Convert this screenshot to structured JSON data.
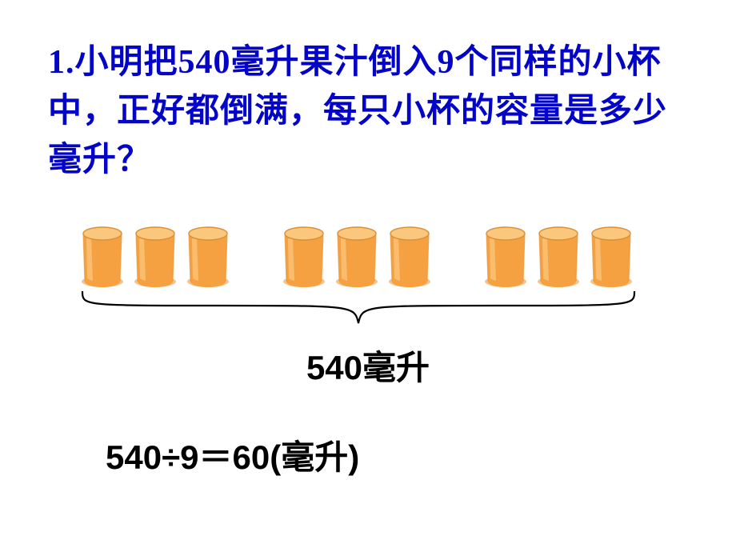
{
  "problem": {
    "number": "1.",
    "text_line1_a": "小明把",
    "text_line1_num1": "540",
    "text_line1_b": "毫升果汁倒入",
    "text_line1_num2": "9",
    "text_line1_c": "个同样的",
    "text_line2": "小杯中，正好都倒满，每只小杯的容",
    "text_line3": "量是多少毫升？",
    "color": "#0404C8"
  },
  "cups": {
    "count": 9,
    "groups": [
      3,
      3,
      3
    ],
    "juice_fill": "#f5a142",
    "juice_highlight": "#fbc77d",
    "glass_rim": "#d89038",
    "glass_side": "#e8953a"
  },
  "brace": {
    "stroke": "#000000",
    "stroke_width": 2.2
  },
  "total": {
    "value": "540",
    "unit": "毫升",
    "color": "#000000"
  },
  "equation": {
    "dividend": "540",
    "op1": "÷",
    "divisor": "9",
    "eq": "＝",
    "result": "60",
    "unit_open": "(",
    "unit": "毫升",
    "unit_close": ")",
    "color": "#000000"
  }
}
